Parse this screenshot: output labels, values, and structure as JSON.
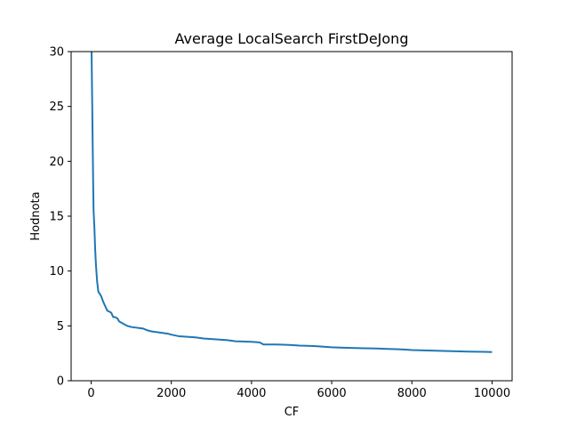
{
  "chart_data": {
    "type": "line",
    "title": "Average LocalSearch FirstDeJong",
    "xlabel": "CF",
    "ylabel": "Hodnota",
    "xlim": [
      -500,
      10500
    ],
    "ylim": [
      0,
      30
    ],
    "xticks": [
      0,
      2000,
      4000,
      6000,
      8000,
      10000
    ],
    "yticks": [
      0,
      5,
      10,
      15,
      20,
      25,
      30
    ],
    "grid": false,
    "series": [
      {
        "color": "#1f77b4",
        "x": [
          10,
          20,
          30,
          40,
          50,
          60,
          80,
          100,
          120,
          150,
          180,
          200,
          250,
          300,
          350,
          400,
          450,
          500,
          550,
          600,
          650,
          700,
          750,
          800,
          900,
          1000,
          1100,
          1200,
          1300,
          1400,
          1500,
          1600,
          1700,
          1800,
          1900,
          2000,
          2200,
          2400,
          2600,
          2800,
          3000,
          3200,
          3400,
          3600,
          3800,
          4000,
          4200,
          4300,
          4400,
          4600,
          4800,
          5000,
          5200,
          5400,
          5600,
          5800,
          6000,
          6200,
          6400,
          6600,
          6800,
          7000,
          7200,
          7400,
          7600,
          7800,
          8000,
          8200,
          8400,
          8600,
          8800,
          9000,
          9200,
          9400,
          9600,
          9800,
          10000
        ],
        "y": [
          30,
          27,
          24,
          21,
          18,
          15.5,
          14,
          12,
          10.5,
          9,
          8.1,
          8,
          7.7,
          7.2,
          6.8,
          6.4,
          6.3,
          6.2,
          5.8,
          5.8,
          5.7,
          5.4,
          5.3,
          5.2,
          5.0,
          4.9,
          4.85,
          4.8,
          4.75,
          4.6,
          4.5,
          4.45,
          4.4,
          4.35,
          4.3,
          4.2,
          4.05,
          4.0,
          3.95,
          3.85,
          3.8,
          3.75,
          3.7,
          3.6,
          3.58,
          3.55,
          3.5,
          3.3,
          3.3,
          3.3,
          3.28,
          3.25,
          3.2,
          3.18,
          3.15,
          3.1,
          3.05,
          3.02,
          3.0,
          2.98,
          2.96,
          2.95,
          2.93,
          2.9,
          2.88,
          2.85,
          2.8,
          2.78,
          2.76,
          2.74,
          2.72,
          2.7,
          2.68,
          2.66,
          2.65,
          2.64,
          2.62
        ]
      }
    ]
  }
}
